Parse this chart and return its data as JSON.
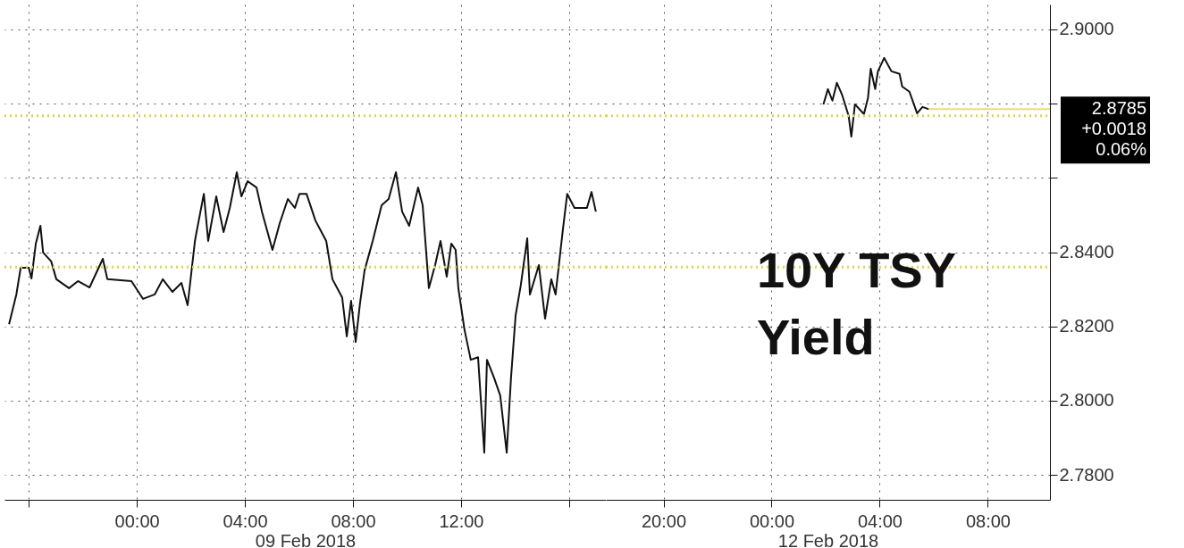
{
  "chart_data": [
    {
      "type": "line",
      "xlabel": "09 Feb 2018",
      "x": [
        -4.73,
        -4.46,
        -4.3,
        -4.0,
        -3.9,
        -3.74,
        -3.57,
        -3.47,
        -3.17,
        -2.98,
        -2.51,
        -2.18,
        -1.75,
        -1.26,
        -1.09,
        -0.2,
        0.23,
        0.66,
        0.96,
        1.32,
        1.65,
        1.88,
        2.15,
        2.21,
        2.48,
        2.64,
        2.94,
        3.21,
        3.44,
        3.7,
        3.87,
        4.1,
        4.43,
        4.63,
        5.02,
        5.29,
        5.59,
        5.85,
        6.02,
        6.28,
        6.61,
        7.01,
        7.24,
        7.6,
        7.77,
        7.93,
        8.1,
        8.26,
        8.43,
        8.73,
        9.06,
        9.32,
        9.59,
        9.82,
        10.08,
        10.41,
        10.58,
        10.81,
        11.04,
        11.24,
        11.47,
        11.64,
        11.8,
        11.9,
        12.13,
        12.36,
        12.63,
        12.86,
        12.96,
        13.22,
        13.45,
        13.69,
        13.85,
        14.02,
        14.21,
        14.45,
        14.55,
        14.88,
        15.11,
        15.34,
        15.5,
        15.77,
        15.93,
        16.2,
        16.66,
        16.83,
        16.99
      ],
      "series": [
        {
          "color": "#111111",
          "values": [
            2.8206,
            2.8286,
            2.8358,
            2.8358,
            2.8329,
            2.8423,
            2.8471,
            2.8399,
            2.8375,
            2.8327,
            2.8303,
            2.8322,
            2.8305,
            2.8382,
            2.8327,
            2.8322,
            2.8274,
            2.8286,
            2.8327,
            2.8293,
            2.8317,
            2.8257,
            2.843,
            2.8454,
            2.8557,
            2.843,
            2.855,
            2.8454,
            2.8519,
            2.8615,
            2.855,
            2.8591,
            2.8574,
            2.8509,
            2.8406,
            2.8478,
            2.8543,
            2.8519,
            2.8557,
            2.8557,
            2.8485,
            2.843,
            2.8327,
            2.8278,
            2.8173,
            2.8269,
            2.8158,
            2.8262,
            2.8351,
            2.843,
            2.8526,
            2.8543,
            2.8615,
            2.8509,
            2.8471,
            2.8574,
            2.8526,
            2.8303,
            2.8365,
            2.843,
            2.8334,
            2.8423,
            2.8406,
            2.8303,
            2.819,
            2.811,
            2.8117,
            2.786,
            2.811,
            2.8062,
            2.8014,
            2.786,
            2.8062,
            2.823,
            2.831,
            2.8437,
            2.8286,
            2.8365,
            2.8221,
            2.8327,
            2.8286,
            2.8461,
            2.8557,
            2.8519,
            2.8519,
            2.8562,
            2.8509
          ]
        }
      ],
      "xlim": [
        -4.9,
        17.36
      ],
      "xticks": [
        {
          "value": -4,
          "label": null
        },
        {
          "value": 0,
          "label": "00:00"
        },
        {
          "value": 4,
          "label": "04:00"
        },
        {
          "value": 8,
          "label": "08:00"
        },
        {
          "value": 12,
          "label": "12:00"
        },
        {
          "value": 16,
          "label": null
        }
      ],
      "ylim": [
        2.7733,
        2.9067
      ],
      "yticks": [
        {
          "value": 2.78,
          "label": null
        },
        {
          "value": 2.8,
          "label": null
        },
        {
          "value": 2.82,
          "label": null
        },
        {
          "value": 2.84,
          "label": null
        },
        {
          "value": 2.86,
          "label": null
        },
        {
          "value": 2.88,
          "label": null
        },
        {
          "value": 2.9,
          "label": null
        }
      ],
      "tick_labels": "x",
      "grid": true,
      "ref_lines": [
        {
          "axis": "y",
          "value": 2.8767,
          "color": "#e0d44a",
          "line_style": "dotted"
        },
        {
          "axis": "y",
          "value": 2.836,
          "color": "#e0d44a",
          "line_style": "dotted"
        }
      ]
    },
    {
      "type": "line",
      "title": "10Y TSY Yield",
      "xlabel": "12 Feb 2018",
      "x": [
        "2018-02-12T01:55",
        "2018-02-12T02:05",
        "2018-02-12T02:15",
        "2018-02-12T02:25",
        "2018-02-12T02:37",
        "2018-02-12T02:51",
        "2018-02-12T02:57",
        "2018-02-12T03:05",
        "2018-02-12T03:25",
        "2018-02-12T03:34",
        "2018-02-12T03:40",
        "2018-02-12T03:50",
        "2018-02-12T03:56",
        "2018-02-12T04:10",
        "2018-02-12T04:26",
        "2018-02-12T04:44",
        "2018-02-12T04:50",
        "2018-02-12T05:06",
        "2018-02-12T05:23",
        "2018-02-12T05:35",
        "2018-02-12T05:49"
      ],
      "series": [
        {
          "color": "#111111",
          "values": [
            2.8798,
            2.8839,
            2.8808,
            2.8856,
            2.8822,
            2.8767,
            2.8711,
            2.8798,
            2.8772,
            2.8815,
            2.8894,
            2.8839,
            2.8887,
            2.8923,
            2.8887,
            2.888,
            2.8846,
            2.8832,
            2.8774,
            2.8791,
            2.8785
          ]
        }
      ],
      "xlim": [
        "2018-02-11T17:52",
        "2018-02-12T10:18"
      ],
      "xticks": [
        {
          "value": "2018-02-11T20:00",
          "label": "20:00"
        },
        {
          "value": "2018-02-12T00:00",
          "label": "00:00"
        },
        {
          "value": "2018-02-12T04:00",
          "label": "04:00"
        },
        {
          "value": "2018-02-12T08:00",
          "label": "08:00"
        }
      ],
      "ylim": [
        2.7733,
        2.9067
      ],
      "yticks": [
        {
          "value": 2.78,
          "label": "2.7800"
        },
        {
          "value": 2.8,
          "label": "2.8000"
        },
        {
          "value": 2.82,
          "label": "2.8200"
        },
        {
          "value": 2.84,
          "label": "2.8400"
        },
        {
          "value": 2.86,
          "label": null
        },
        {
          "value": 2.88,
          "label": null
        },
        {
          "value": 2.9,
          "label": "2.9000"
        }
      ],
      "grid": true,
      "ref_lines": [
        {
          "axis": "y",
          "value": 2.8767,
          "color": "#e0d44a",
          "line_style": "dotted"
        },
        {
          "axis": "y",
          "value": 2.836,
          "color": "#e0d44a",
          "line_style": "dotted"
        },
        {
          "axis": "y",
          "value": 2.8785,
          "color": "#e6e070",
          "line_style": "solid",
          "label": "2.8785"
        }
      ],
      "annotations": [
        "+0.0018",
        "0.06%"
      ]
    }
  ]
}
